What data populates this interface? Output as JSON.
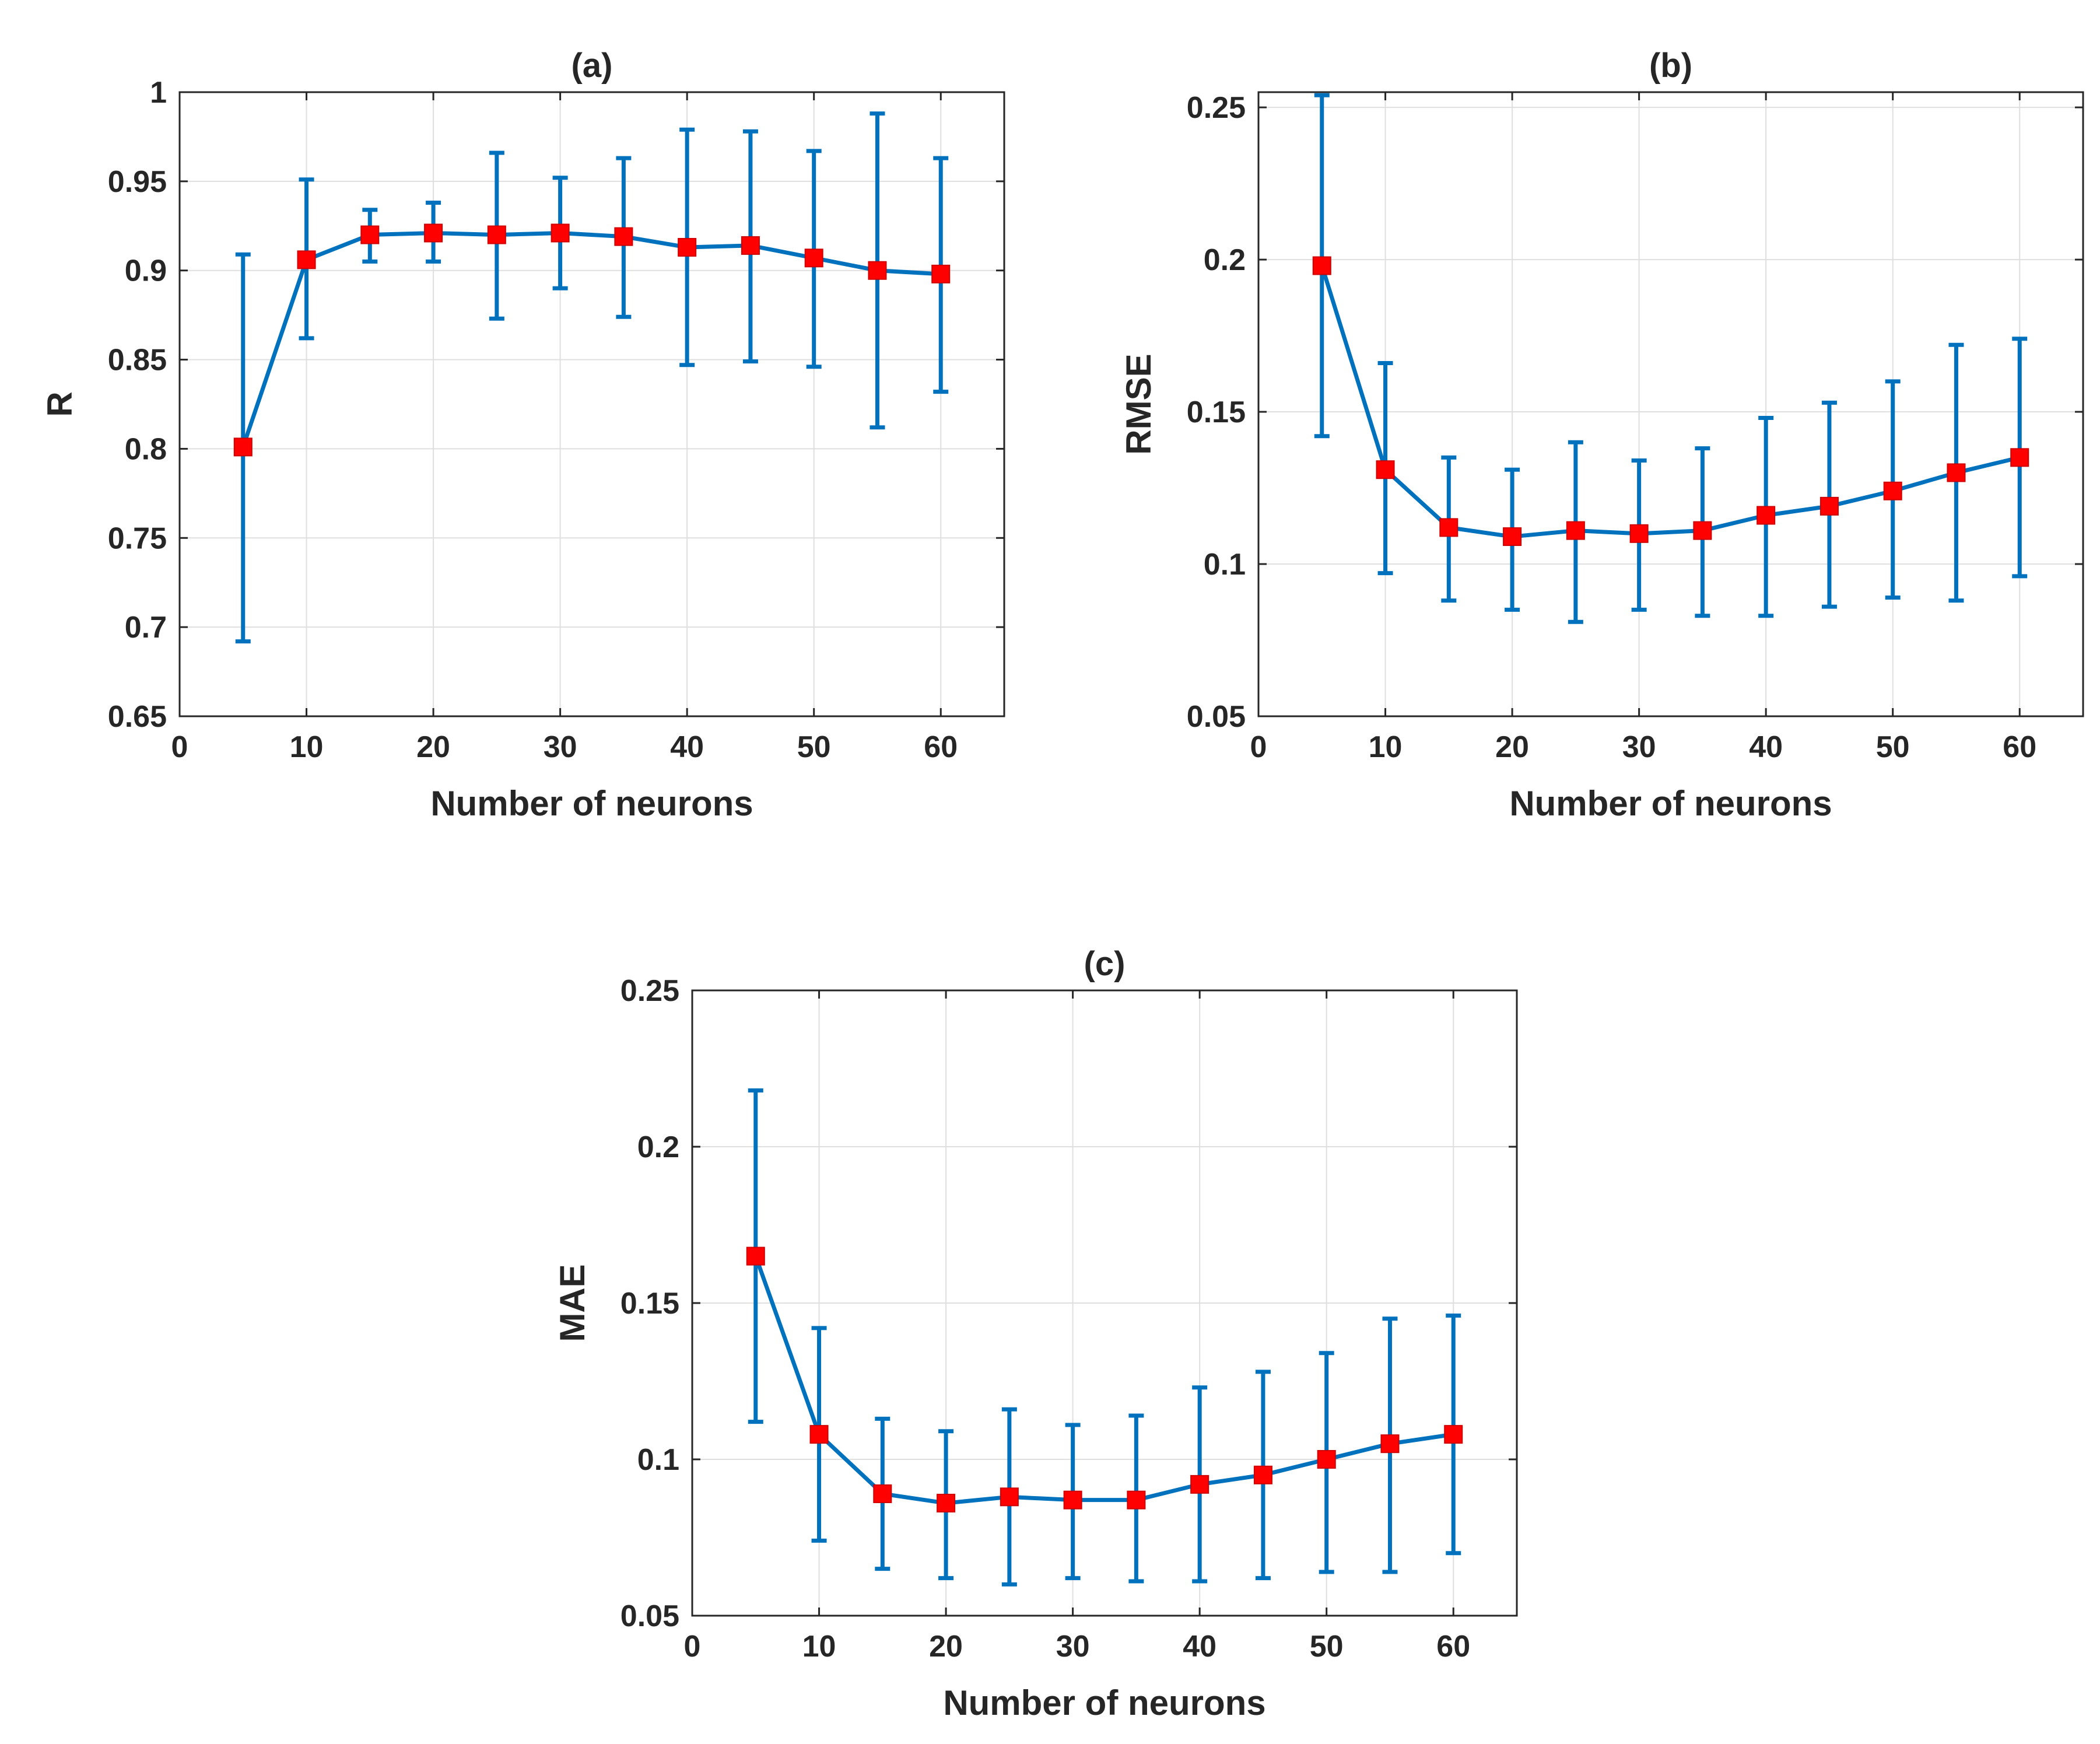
{
  "figure": {
    "colors": {
      "line": "#0072BD",
      "marker": "#FF0000",
      "marker_edge": "#D00000",
      "grid": "#DFDFDF",
      "axes": "#262626",
      "background": "#FFFFFF"
    }
  },
  "chart_data": [
    {
      "id": "a",
      "type": "line",
      "title": "(a)",
      "xlabel": "Number of neurons",
      "ylabel": "R",
      "xlim": [
        0,
        65
      ],
      "ylim": [
        0.65,
        1
      ],
      "grid": true,
      "xticks": [
        0,
        10,
        20,
        30,
        40,
        50,
        60
      ],
      "xtick_labels": [
        "0",
        "10",
        "20",
        "30",
        "40",
        "50",
        "60"
      ],
      "yticks": [
        0.65,
        0.7,
        0.75,
        0.8,
        0.85,
        0.9,
        0.95,
        1
      ],
      "ytick_labels": [
        "0.65",
        "0.7",
        "0.75",
        "0.8",
        "0.85",
        "0.9",
        "0.95",
        "1"
      ],
      "x": [
        5,
        10,
        15,
        20,
        25,
        30,
        35,
        40,
        45,
        50,
        55,
        60
      ],
      "y": [
        0.801,
        0.906,
        0.92,
        0.921,
        0.92,
        0.921,
        0.919,
        0.913,
        0.914,
        0.907,
        0.9,
        0.898
      ],
      "err_low": [
        0.692,
        0.862,
        0.905,
        0.905,
        0.873,
        0.89,
        0.874,
        0.847,
        0.849,
        0.846,
        0.812,
        0.832
      ],
      "err_high": [
        0.909,
        0.951,
        0.934,
        0.938,
        0.966,
        0.952,
        0.963,
        0.979,
        0.978,
        0.967,
        0.988,
        0.963
      ]
    },
    {
      "id": "b",
      "type": "line",
      "title": "(b)",
      "xlabel": "Number of neurons",
      "ylabel": "RMSE",
      "xlim": [
        0,
        65
      ],
      "ylim": [
        0.05,
        0.255
      ],
      "grid": true,
      "xticks": [
        0,
        10,
        20,
        30,
        40,
        50,
        60
      ],
      "xtick_labels": [
        "0",
        "10",
        "20",
        "30",
        "40",
        "50",
        "60"
      ],
      "yticks": [
        0.05,
        0.1,
        0.15,
        0.2,
        0.25
      ],
      "ytick_labels": [
        "0.05",
        "0.1",
        "0.15",
        "0.2",
        "0.25"
      ],
      "x": [
        5,
        10,
        15,
        20,
        25,
        30,
        35,
        40,
        45,
        50,
        55,
        60
      ],
      "y": [
        0.198,
        0.131,
        0.112,
        0.109,
        0.111,
        0.11,
        0.111,
        0.116,
        0.119,
        0.124,
        0.13,
        0.135
      ],
      "err_low": [
        0.142,
        0.097,
        0.088,
        0.085,
        0.081,
        0.085,
        0.083,
        0.083,
        0.086,
        0.089,
        0.088,
        0.096
      ],
      "err_high": [
        0.254,
        0.166,
        0.135,
        0.131,
        0.14,
        0.134,
        0.138,
        0.148,
        0.153,
        0.16,
        0.172,
        0.174
      ]
    },
    {
      "id": "c",
      "type": "line",
      "title": "(c)",
      "xlabel": "Number of neurons",
      "ylabel": "MAE",
      "xlim": [
        0,
        65
      ],
      "ylim": [
        0.05,
        0.25
      ],
      "grid": true,
      "xticks": [
        0,
        10,
        20,
        30,
        40,
        50,
        60
      ],
      "xtick_labels": [
        "0",
        "10",
        "20",
        "30",
        "40",
        "50",
        "60"
      ],
      "yticks": [
        0.05,
        0.1,
        0.15,
        0.2,
        0.25
      ],
      "ytick_labels": [
        "0.05",
        "0.1",
        "0.15",
        "0.2",
        "0.25"
      ],
      "x": [
        5,
        10,
        15,
        20,
        25,
        30,
        35,
        40,
        45,
        50,
        55,
        60
      ],
      "y": [
        0.165,
        0.108,
        0.089,
        0.086,
        0.088,
        0.087,
        0.087,
        0.092,
        0.095,
        0.1,
        0.105,
        0.108
      ],
      "err_low": [
        0.112,
        0.074,
        0.065,
        0.062,
        0.06,
        0.062,
        0.061,
        0.061,
        0.062,
        0.064,
        0.064,
        0.07
      ],
      "err_high": [
        0.218,
        0.142,
        0.113,
        0.109,
        0.116,
        0.111,
        0.114,
        0.123,
        0.128,
        0.134,
        0.145,
        0.146
      ]
    }
  ]
}
